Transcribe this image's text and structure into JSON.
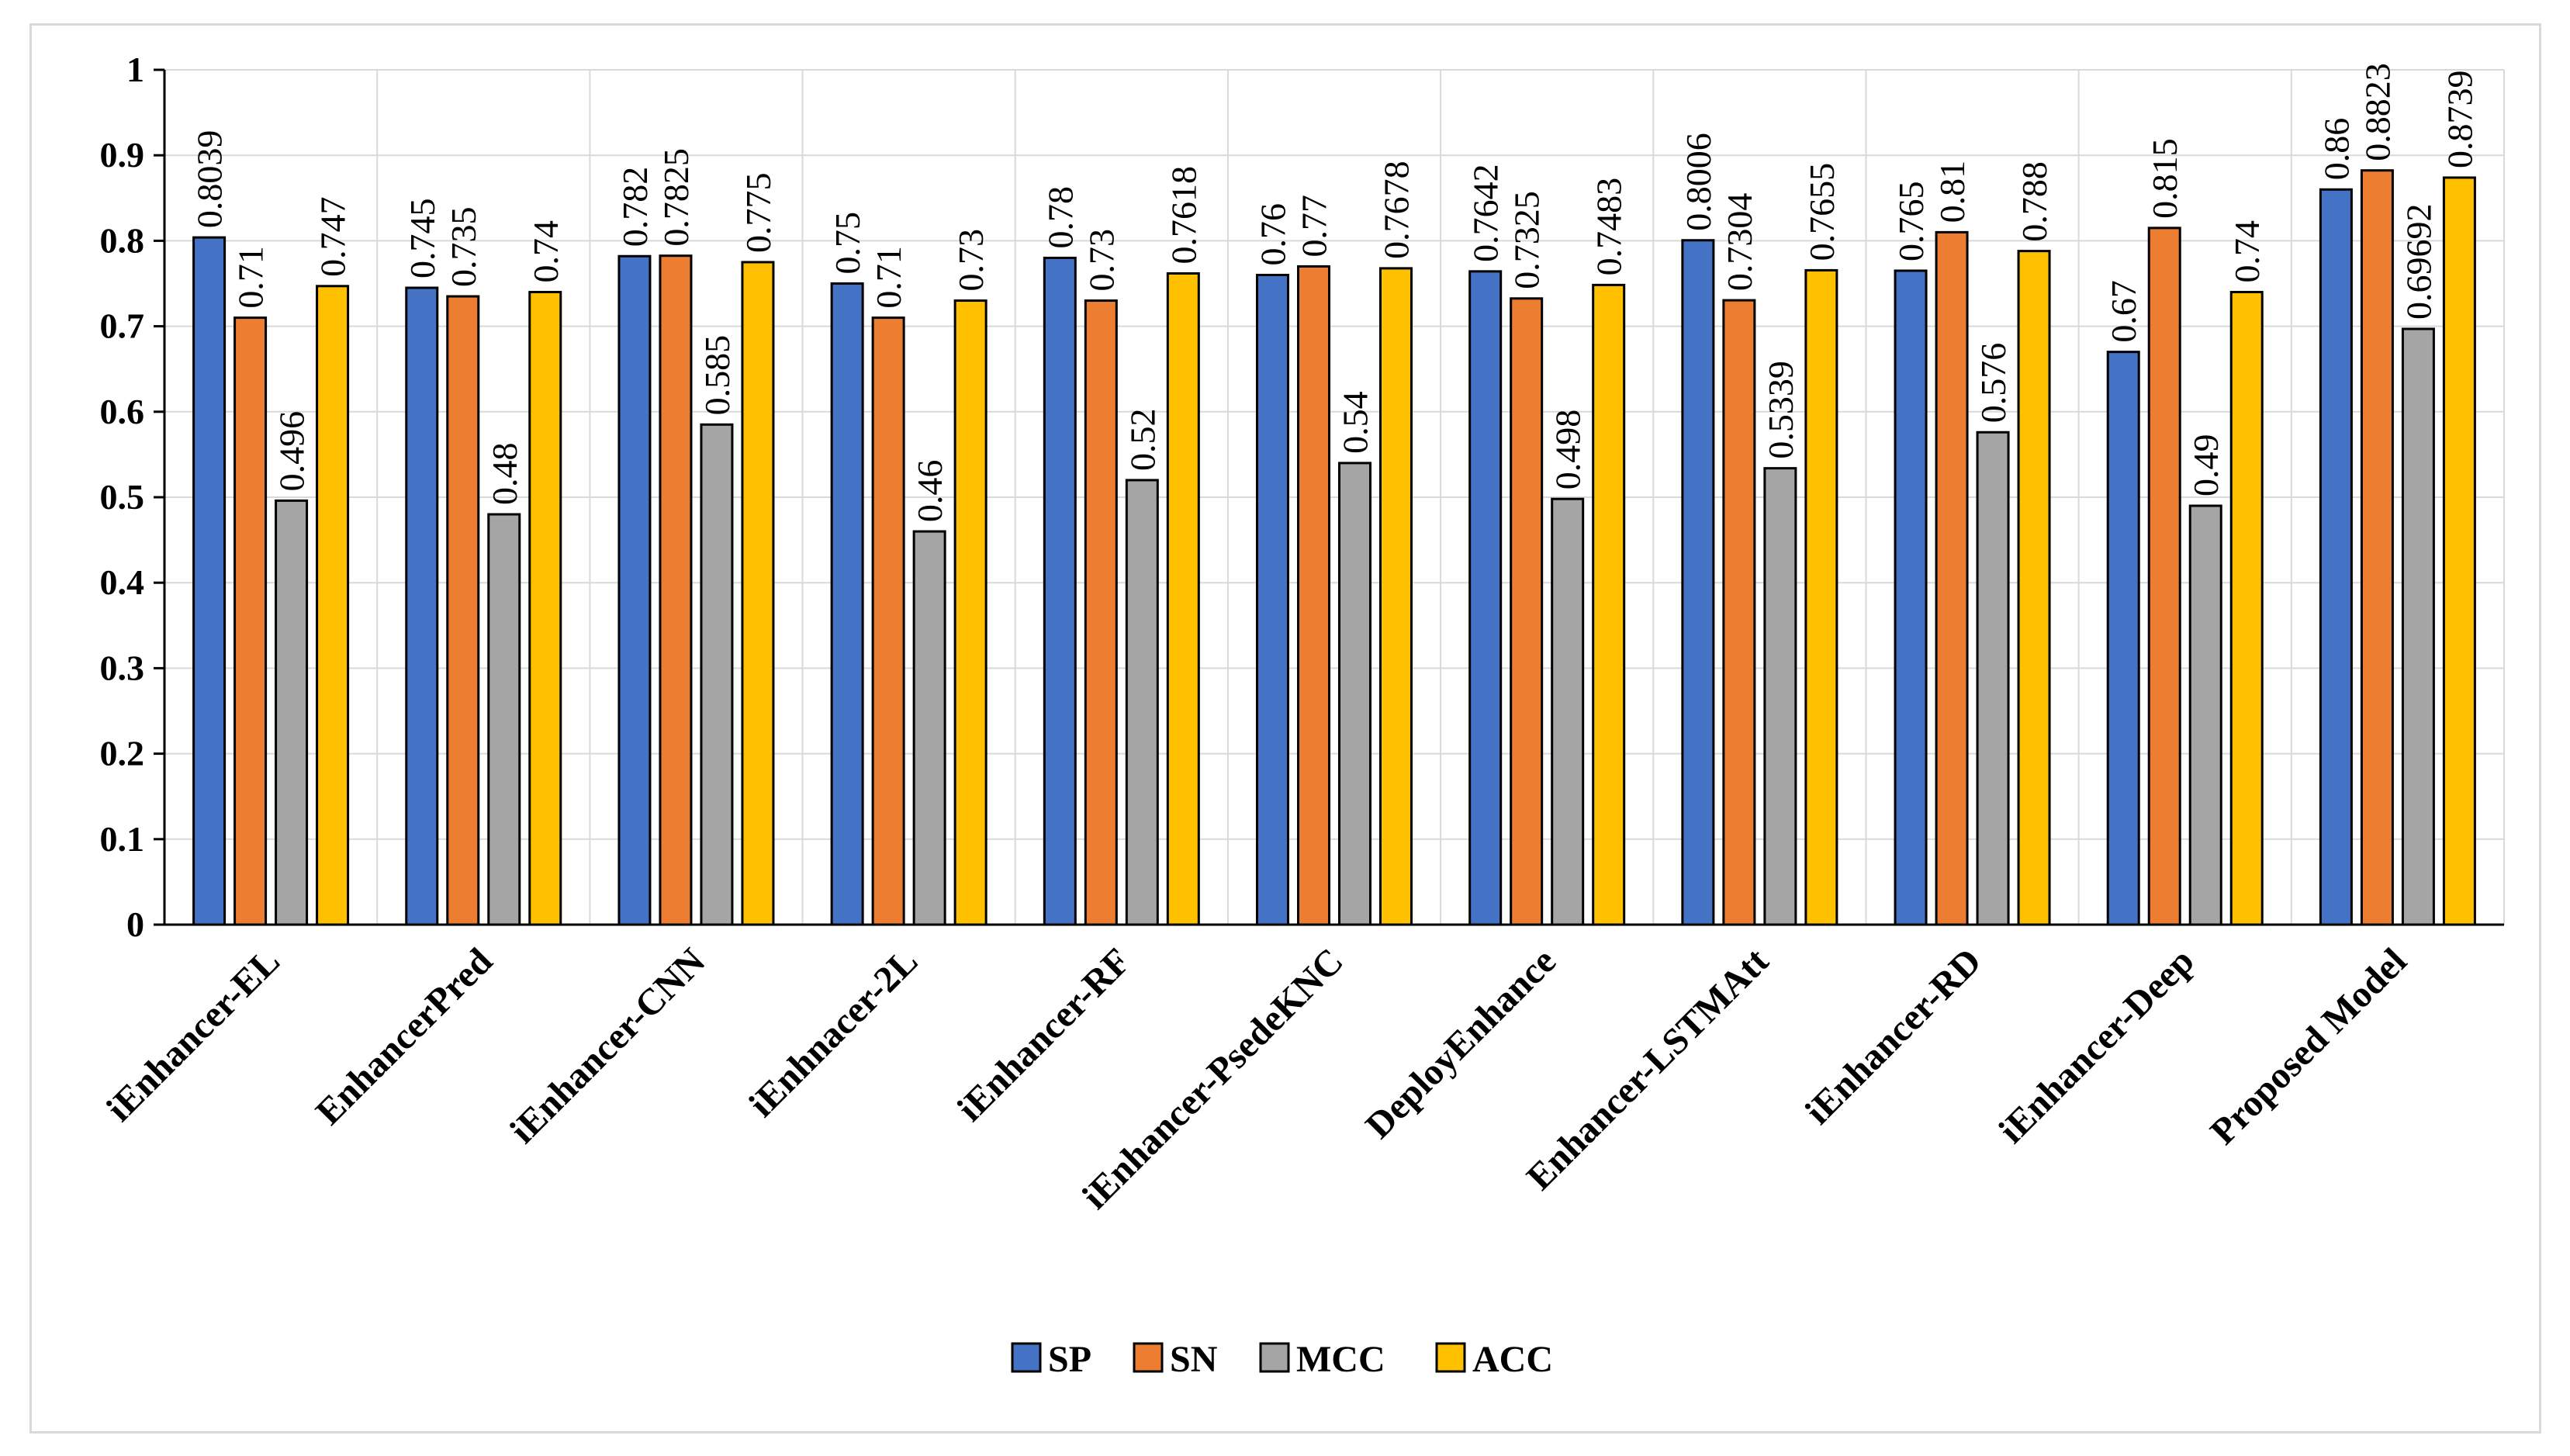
{
  "chart_data": {
    "type": "bar",
    "title": "",
    "xlabel": "",
    "ylabel": "",
    "ylim": [
      0,
      1
    ],
    "yticks": [
      "0",
      "0.1",
      "0.2",
      "0.3",
      "0.4",
      "0.5",
      "0.6",
      "0.7",
      "0.8",
      "0.9",
      "1"
    ],
    "grid": true,
    "legend_position": "bottom",
    "categories": [
      "iEnhancer-EL",
      "EnhancerPred",
      "iEnhancer-CNN",
      "iEnhnacer-2L",
      "iEnhancer-RF",
      "iEnhancer-PsedeKNC",
      "DeployEnhance",
      "Enhancer-LSTMAtt",
      "iEnhancer-RD",
      "iEnhancer-Deep",
      "Proposed Model"
    ],
    "series": [
      {
        "name": "SP",
        "color": "#4472C4",
        "values": [
          0.8039,
          0.745,
          0.782,
          0.75,
          0.78,
          0.76,
          0.7642,
          0.8006,
          0.765,
          0.67,
          0.86
        ],
        "labels": [
          "0.8039",
          "0.745",
          "0.782",
          "0.75",
          "0.78",
          "0.76",
          "0.7642",
          "0.8006",
          "0.765",
          "0.67",
          "0.86"
        ]
      },
      {
        "name": "SN",
        "color": "#ED7D31",
        "values": [
          0.71,
          0.735,
          0.7825,
          0.71,
          0.73,
          0.77,
          0.7325,
          0.7304,
          0.81,
          0.815,
          0.8823
        ],
        "labels": [
          "0.71",
          "0.735",
          "0.7825",
          "0.71",
          "0.73",
          "0.77",
          "0.7325",
          "0.7304",
          "0.81",
          "0.815",
          "0.8823"
        ]
      },
      {
        "name": "MCC",
        "color": "#A5A5A5",
        "values": [
          0.496,
          0.48,
          0.585,
          0.46,
          0.52,
          0.54,
          0.498,
          0.5339,
          0.576,
          0.49,
          0.69692
        ],
        "labels": [
          "0.496",
          "0.48",
          "0.585",
          "0.46",
          "0.52",
          "0.54",
          "0.498",
          "0.5339",
          "0.576",
          "0.49",
          "0.69692"
        ]
      },
      {
        "name": "ACC",
        "color": "#FFC000",
        "values": [
          0.747,
          0.74,
          0.775,
          0.73,
          0.7618,
          0.7678,
          0.7483,
          0.7655,
          0.788,
          0.74,
          0.8739
        ],
        "labels": [
          "0.747",
          "0.74",
          "0.775",
          "0.73",
          "0.7618",
          "0.7678",
          "0.7483",
          "0.7655",
          "0.788",
          "0.74",
          "0.8739"
        ]
      }
    ]
  }
}
